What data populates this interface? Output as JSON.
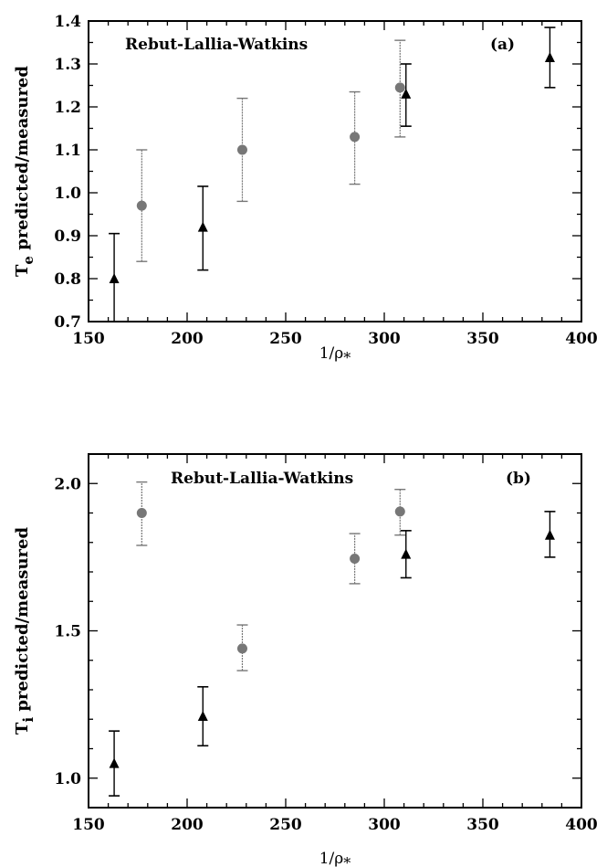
{
  "chart_data": [
    {
      "type": "scatter",
      "panel_label": "(a)",
      "title": "Rebut-Lallia-Watkins",
      "xlabel": "1/ρ",
      "xlabel_sub": "*",
      "ylabel": "T",
      "ylabel_sub": "e",
      "ylabel_rest": " predicted/measured",
      "xlim": [
        150,
        400
      ],
      "ylim": [
        0.7,
        1.4
      ],
      "xticks": [
        150,
        200,
        250,
        300,
        350,
        400
      ],
      "yticks": [
        0.7,
        0.8,
        0.9,
        1.0,
        1.1,
        1.2,
        1.3,
        1.4
      ],
      "ytick_labels": [
        "0.7",
        "0.8",
        "0.9",
        "1.0",
        "1.1",
        "1.2",
        "1.3",
        "1.4"
      ],
      "grid": false,
      "series": [
        {
          "marker": "circle",
          "color": "#777777",
          "points": [
            {
              "x": 177,
              "y": 0.97,
              "lo": 0.84,
              "hi": 1.1
            },
            {
              "x": 228,
              "y": 1.1,
              "lo": 0.98,
              "hi": 1.22
            },
            {
              "x": 285,
              "y": 1.13,
              "lo": 1.02,
              "hi": 1.235
            },
            {
              "x": 308,
              "y": 1.245,
              "lo": 1.13,
              "hi": 1.355
            }
          ]
        },
        {
          "marker": "triangle",
          "color": "#000000",
          "points": [
            {
              "x": 163,
              "y": 0.8,
              "lo": 0.7,
              "hi": 0.905
            },
            {
              "x": 208,
              "y": 0.92,
              "lo": 0.82,
              "hi": 1.015
            },
            {
              "x": 311,
              "y": 1.23,
              "lo": 1.155,
              "hi": 1.3
            },
            {
              "x": 384,
              "y": 1.315,
              "lo": 1.245,
              "hi": 1.385
            }
          ]
        }
      ]
    },
    {
      "type": "scatter",
      "panel_label": "(b)",
      "title": "Rebut-Lallia-Watkins",
      "xlabel": "1/ρ",
      "xlabel_sub": "*",
      "ylabel": "T",
      "ylabel_sub": "i",
      "ylabel_rest": " predicted/measured",
      "xlim": [
        150,
        400
      ],
      "ylim": [
        0.9,
        2.1
      ],
      "xticks": [
        150,
        200,
        250,
        300,
        350,
        400
      ],
      "yticks": [
        1.0,
        1.5,
        2.0
      ],
      "ytick_labels": [
        "1.0",
        "1.5",
        "2.0"
      ],
      "grid": false,
      "series": [
        {
          "marker": "circle",
          "color": "#777777",
          "points": [
            {
              "x": 177,
              "y": 1.9,
              "lo": 1.79,
              "hi": 2.005
            },
            {
              "x": 228,
              "y": 1.44,
              "lo": 1.365,
              "hi": 1.52
            },
            {
              "x": 285,
              "y": 1.745,
              "lo": 1.66,
              "hi": 1.83
            },
            {
              "x": 308,
              "y": 1.905,
              "lo": 1.825,
              "hi": 1.98
            }
          ]
        },
        {
          "marker": "triangle",
          "color": "#000000",
          "points": [
            {
              "x": 163,
              "y": 1.05,
              "lo": 0.94,
              "hi": 1.16
            },
            {
              "x": 208,
              "y": 1.21,
              "lo": 1.11,
              "hi": 1.31
            },
            {
              "x": 311,
              "y": 1.76,
              "lo": 1.68,
              "hi": 1.84
            },
            {
              "x": 384,
              "y": 1.825,
              "lo": 1.75,
              "hi": 1.905
            }
          ]
        }
      ]
    }
  ]
}
